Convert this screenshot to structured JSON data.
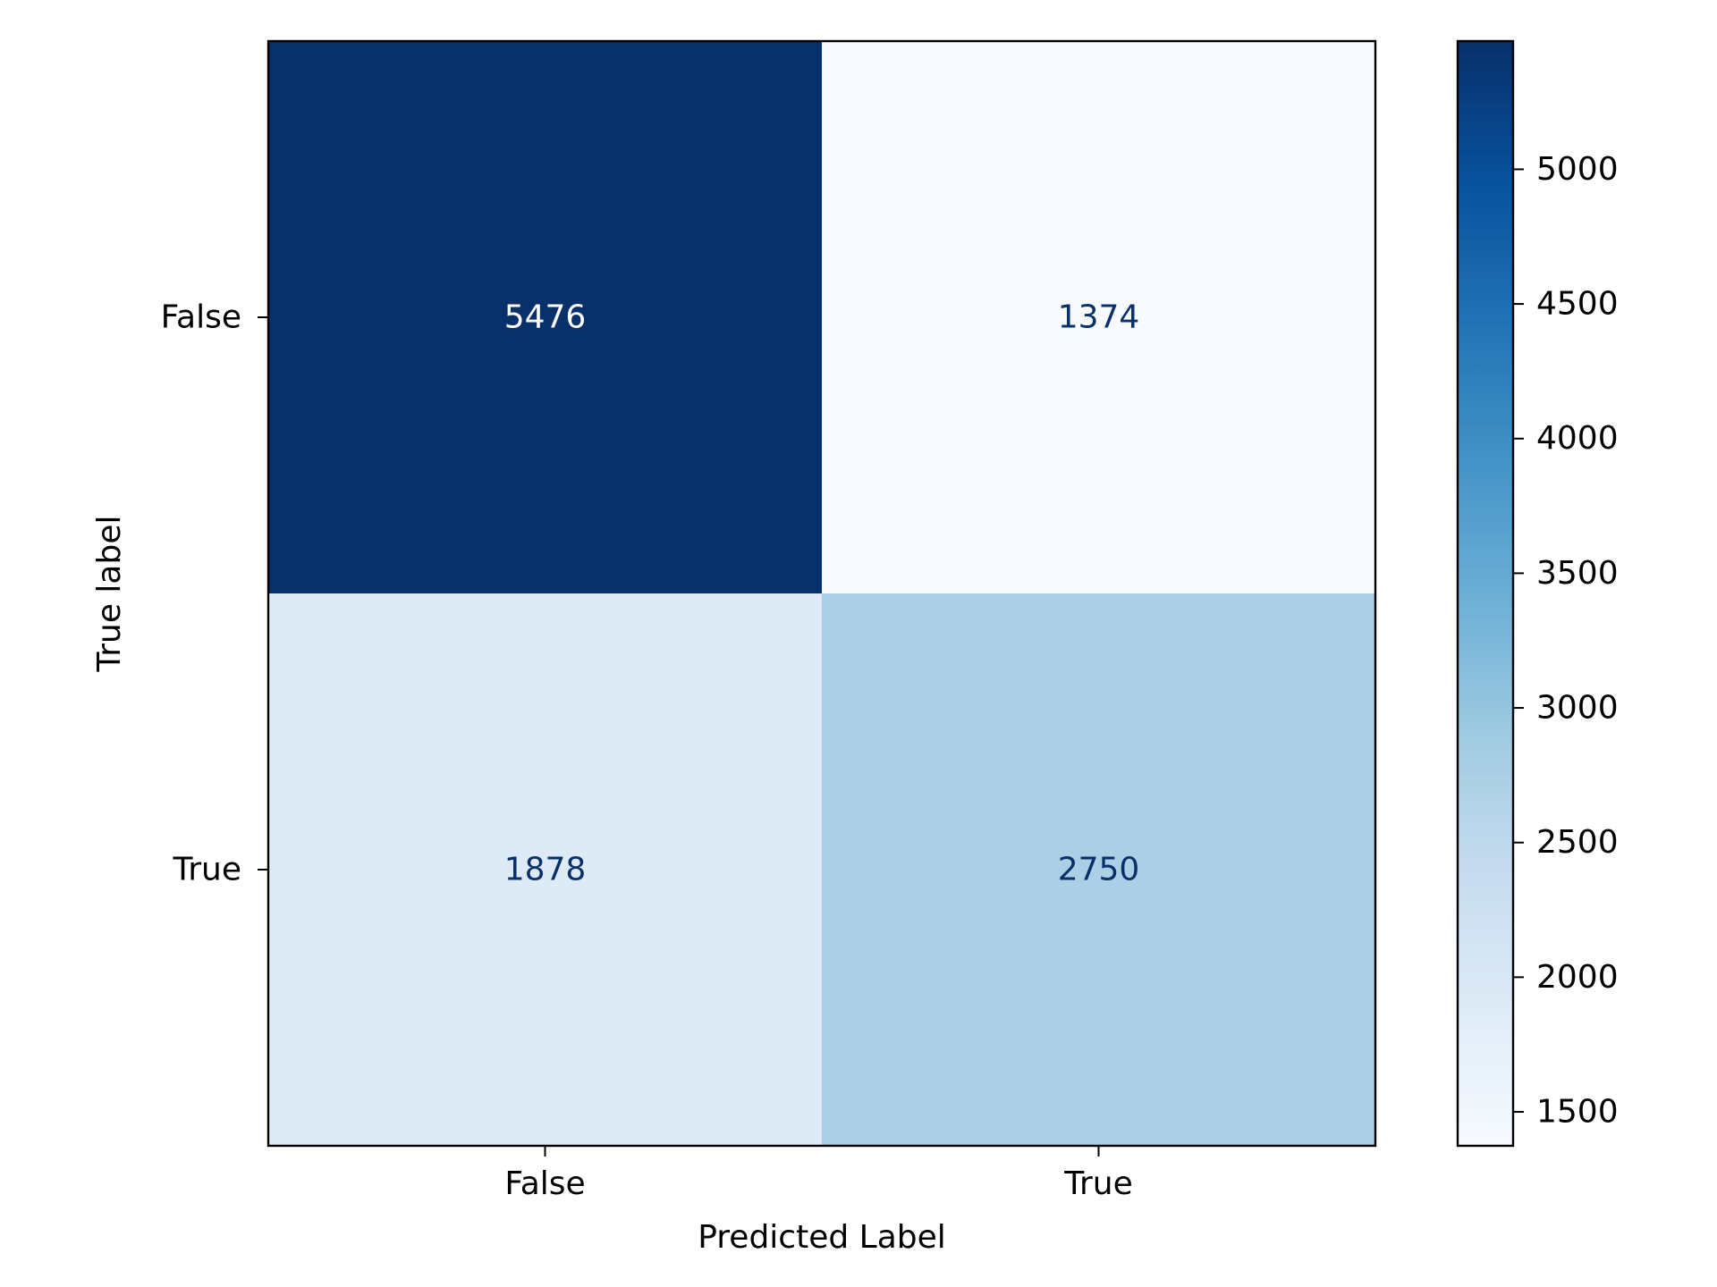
{
  "chart_data": {
    "type": "heatmap",
    "title": "",
    "xlabel": "Predicted Label",
    "ylabel": "True label",
    "x_categories": [
      "False",
      "True"
    ],
    "y_categories": [
      "False",
      "True"
    ],
    "values": [
      [
        5476,
        1374
      ],
      [
        1878,
        2750
      ]
    ],
    "colormap": "Blues",
    "colorbar": {
      "range": [
        1374,
        5476
      ],
      "ticks": [
        1500,
        2000,
        2500,
        3000,
        3500,
        4000,
        4500,
        5000
      ]
    },
    "grid": false,
    "text_colors": {
      "dark_cell": "#ffffff",
      "light_cell": "#08306b"
    }
  }
}
